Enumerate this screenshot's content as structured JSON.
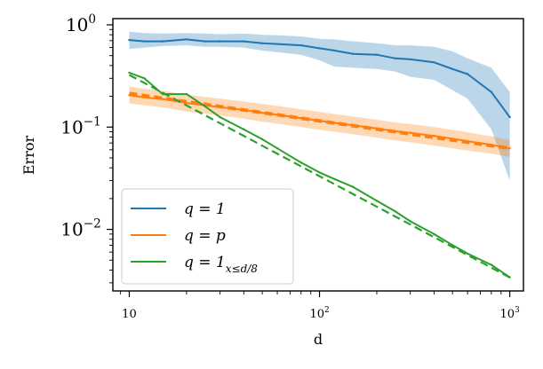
{
  "chart_data": {
    "type": "line",
    "title": "",
    "xlabel": "d",
    "ylabel": "Error",
    "xscale": "log",
    "yscale": "log",
    "xlim": [
      8.2,
      1180
    ],
    "ylim": [
      0.0025,
      1.15
    ],
    "x_ticks": [
      {
        "value": 10,
        "base": "10",
        "exp": ""
      },
      {
        "value": 100,
        "base": "10",
        "exp": "2"
      },
      {
        "value": 1000,
        "base": "10",
        "exp": "3"
      }
    ],
    "y_ticks": [
      {
        "value": 1,
        "base": "10",
        "exp": "0"
      },
      {
        "value": 0.1,
        "base": "10",
        "exp": "−1"
      },
      {
        "value": 0.01,
        "base": "10",
        "exp": "−2"
      }
    ],
    "x": [
      10,
      12,
      15,
      20,
      25,
      30,
      40,
      50,
      60,
      80,
      100,
      120,
      150,
      200,
      250,
      300,
      400,
      500,
      600,
      800,
      1000
    ],
    "series": [
      {
        "name": "q = 1",
        "color": "#1f77b4",
        "values": [
          0.71,
          0.69,
          0.69,
          0.72,
          0.69,
          0.69,
          0.69,
          0.66,
          0.65,
          0.63,
          0.59,
          0.56,
          0.52,
          0.51,
          0.47,
          0.46,
          0.43,
          0.37,
          0.33,
          0.22,
          0.125
        ],
        "band_low": [
          0.58,
          0.6,
          0.62,
          0.63,
          0.61,
          0.61,
          0.6,
          0.56,
          0.54,
          0.51,
          0.45,
          0.39,
          0.38,
          0.37,
          0.35,
          0.31,
          0.29,
          0.23,
          0.19,
          0.095,
          0.03
        ],
        "band_high": [
          0.86,
          0.83,
          0.82,
          0.83,
          0.82,
          0.81,
          0.82,
          0.8,
          0.79,
          0.77,
          0.73,
          0.72,
          0.69,
          0.66,
          0.63,
          0.63,
          0.61,
          0.55,
          0.47,
          0.38,
          0.22
        ]
      },
      {
        "name": "q = p",
        "color": "#ff7f0e",
        "values": [
          0.205,
          0.195,
          0.188,
          0.172,
          0.163,
          0.157,
          0.147,
          0.138,
          0.132,
          0.122,
          0.115,
          0.11,
          0.104,
          0.097,
          0.091,
          0.088,
          0.082,
          0.077,
          0.073,
          0.067,
          0.062
        ],
        "band_low": [
          0.17,
          0.163,
          0.156,
          0.142,
          0.135,
          0.13,
          0.121,
          0.113,
          0.108,
          0.1,
          0.094,
          0.09,
          0.085,
          0.079,
          0.074,
          0.071,
          0.066,
          0.062,
          0.059,
          0.055,
          0.051
        ],
        "band_high": [
          0.25,
          0.236,
          0.226,
          0.208,
          0.197,
          0.19,
          0.178,
          0.168,
          0.161,
          0.149,
          0.141,
          0.134,
          0.127,
          0.118,
          0.111,
          0.107,
          0.1,
          0.094,
          0.089,
          0.081,
          0.075
        ],
        "fit": {
          "a": 0.395,
          "b": -0.268
        }
      },
      {
        "name": "q = 1 (x ≤ d/8)",
        "color": "#2ca02c",
        "values": [
          0.34,
          0.3,
          0.21,
          0.21,
          0.16,
          0.125,
          0.095,
          0.076,
          0.062,
          0.045,
          0.036,
          0.031,
          0.026,
          0.019,
          0.015,
          0.012,
          0.009,
          0.007,
          0.0058,
          0.0045,
          0.0034
        ],
        "fit": {
          "a": 3.16,
          "b": -0.99
        }
      }
    ],
    "legend": {
      "position": "lower-left",
      "entries": [
        {
          "base": "q = 1",
          "sub": "",
          "color": "#1f77b4"
        },
        {
          "base": "q = p",
          "sub": "",
          "color": "#ff7f0e"
        },
        {
          "base": "q = 1",
          "sub": "x≤d/8",
          "color": "#2ca02c"
        }
      ]
    }
  }
}
